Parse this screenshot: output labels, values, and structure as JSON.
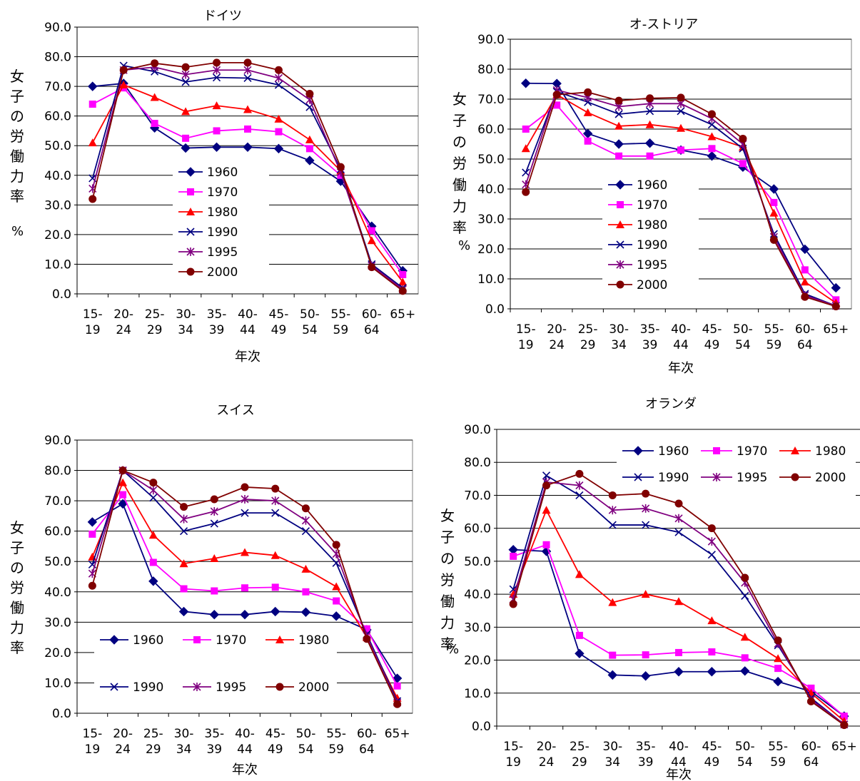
{
  "colors": {
    "1960": "#000080",
    "1970": "#ff00ff",
    "1980": "#ff0000",
    "1990": "#000080",
    "1995": "#800080",
    "2000": "#800000"
  },
  "markers": {
    "1960": "diamond",
    "1970": "square",
    "1980": "triangle",
    "1990": "x",
    "1995": "asterisk",
    "2000": "circle"
  },
  "chart_data": [
    {
      "type": "line",
      "title": "ドイツ",
      "xlabel": "年次",
      "ylabel": "女子の労働力率",
      "ylabel_unit": "%",
      "categories": [
        "15-|19",
        "20-|24",
        "25-|29",
        "30-|34",
        "35-|39",
        "40-|44",
        "45-|49",
        "50-|54",
        "55-|59",
        "60-|64",
        "65+"
      ],
      "ylim": [
        0,
        90
      ],
      "ytick_step": 10,
      "yticks": [
        "0.0",
        "10.0",
        "20.0",
        "30.0",
        "40.0",
        "50.0",
        "60.0",
        "70.0",
        "80.0",
        "90.0"
      ],
      "legend": "center-left, vertical",
      "series": [
        {
          "name": "1960",
          "values": [
            70.0,
            71.0,
            56.0,
            49.2,
            49.5,
            49.5,
            49.0,
            45.0,
            38.0,
            22.8,
            7.8
          ]
        },
        {
          "name": "1970",
          "values": [
            64.0,
            69.5,
            57.5,
            52.5,
            55.0,
            55.6,
            54.7,
            49.0,
            40.0,
            21.3,
            6.5
          ]
        },
        {
          "name": "1980",
          "values": [
            51.0,
            70.5,
            66.3,
            61.5,
            63.5,
            62.2,
            59.0,
            52.0,
            41.5,
            18.0,
            4.0
          ]
        },
        {
          "name": "1990",
          "values": [
            39.0,
            77.0,
            75.0,
            71.5,
            73.0,
            72.8,
            70.5,
            63.0,
            42.0,
            10.0,
            2.0
          ]
        },
        {
          "name": "1995",
          "values": [
            35.5,
            75.5,
            76.5,
            74.0,
            75.5,
            75.5,
            72.8,
            65.5,
            41.0,
            9.5,
            1.5
          ]
        },
        {
          "name": "2000",
          "values": [
            32.0,
            75.5,
            77.8,
            76.5,
            78.0,
            78.0,
            75.5,
            67.5,
            42.8,
            9.0,
            1.0
          ]
        }
      ]
    },
    {
      "type": "line",
      "title": "オ-ストリア",
      "xlabel": "年次",
      "ylabel": "女子の労働力率",
      "ylabel_unit": "%",
      "categories": [
        "15-|19",
        "20-|24",
        "25-|29",
        "30-|34",
        "35-|39",
        "40-|44",
        "45-|49",
        "50-|54",
        "55-|59",
        "60-|64",
        "65+"
      ],
      "ylim": [
        0,
        90
      ],
      "ytick_step": 10,
      "yticks": [
        "0.0",
        "10.0",
        "20.0",
        "30.0",
        "40.0",
        "50.0",
        "60.0",
        "70.0",
        "80.0",
        "90.0"
      ],
      "legend": "center-left, vertical",
      "series": [
        {
          "name": "1960",
          "values": [
            75.3,
            75.2,
            58.5,
            55.0,
            55.3,
            53.0,
            51.0,
            47.3,
            40.0,
            19.9,
            7.0
          ]
        },
        {
          "name": "1970",
          "values": [
            60.0,
            68.0,
            56.0,
            51.0,
            51.0,
            53.0,
            53.5,
            48.5,
            35.5,
            13.0,
            3.0
          ]
        },
        {
          "name": "1980",
          "values": [
            53.5,
            71.5,
            65.5,
            61.0,
            61.5,
            60.3,
            57.5,
            54.0,
            32.0,
            9.0,
            2.0
          ]
        },
        {
          "name": "1990",
          "values": [
            45.5,
            72.5,
            69.0,
            65.0,
            66.0,
            66.0,
            61.5,
            53.5,
            25.0,
            5.0,
            1.0
          ]
        },
        {
          "name": "1995",
          "values": [
            41.5,
            73.0,
            70.5,
            67.5,
            68.5,
            68.5,
            63.5,
            55.0,
            24.0,
            4.5,
            1.0
          ]
        },
        {
          "name": "2000",
          "values": [
            39.0,
            71.5,
            72.3,
            69.5,
            70.3,
            70.5,
            65.0,
            56.8,
            23.0,
            4.0,
            0.8
          ]
        }
      ]
    },
    {
      "type": "line",
      "title": "スイス",
      "xlabel": "年次",
      "ylabel": "女子の労働力率",
      "categories": [
        "15-|19",
        "20-|24",
        "25-|29",
        "30-|34",
        "35-|39",
        "40-|44",
        "45-|49",
        "50-|54",
        "55-|59",
        "60-|64",
        "65+"
      ],
      "ylim": [
        0,
        90
      ],
      "ytick_step": 10,
      "yticks": [
        "0.0",
        "10.0",
        "20.0",
        "30.0",
        "40.0",
        "50.0",
        "60.0",
        "70.0",
        "80.0",
        "90.0"
      ],
      "legend": "bottom-center, 3 columns",
      "series": [
        {
          "name": "1960",
          "values": [
            63.0,
            69.0,
            43.5,
            33.5,
            32.5,
            32.5,
            33.5,
            33.3,
            32.0,
            27.5,
            11.5
          ]
        },
        {
          "name": "1970",
          "values": [
            59.0,
            72.0,
            49.7,
            41.0,
            40.3,
            41.3,
            41.5,
            40.0,
            37.0,
            27.8,
            9.0
          ]
        },
        {
          "name": "1980",
          "values": [
            51.5,
            76.0,
            58.7,
            49.3,
            51.0,
            53.0,
            52.0,
            47.5,
            41.7,
            25.0,
            5.0
          ]
        },
        {
          "name": "1990",
          "values": [
            49.0,
            80.0,
            71.0,
            60.0,
            62.5,
            66.0,
            66.0,
            60.0,
            49.5,
            26.0,
            4.0
          ]
        },
        {
          "name": "1995",
          "values": [
            46.0,
            80.0,
            73.5,
            64.0,
            66.5,
            70.5,
            70.0,
            63.5,
            52.5,
            25.5,
            3.5
          ]
        },
        {
          "name": "2000",
          "values": [
            42.0,
            80.0,
            76.0,
            68.0,
            70.5,
            74.5,
            74.0,
            67.5,
            55.5,
            24.5,
            3.0
          ]
        }
      ]
    },
    {
      "type": "line",
      "title": "オランダ",
      "xlabel": "年次",
      "ylabel": "女子の労働力率",
      "ylabel_unit": "%",
      "categories": [
        "15-|19",
        "20-|24",
        "25-|29",
        "30-|34",
        "35-|39",
        "40-|44",
        "45-|49",
        "50-|54",
        "55-|59",
        "60-|64",
        "65+"
      ],
      "ylim": [
        0,
        90
      ],
      "ytick_step": 10,
      "yticks": [
        "0.0",
        "10.0",
        "20.0",
        "30.0",
        "40.0",
        "50.0",
        "60.0",
        "70.0",
        "80.0",
        "90.0"
      ],
      "legend": "top, 3 columns",
      "series": [
        {
          "name": "1960",
          "values": [
            53.5,
            53.0,
            22.0,
            15.5,
            15.2,
            16.5,
            16.5,
            16.7,
            13.5,
            10.5,
            3.0
          ]
        },
        {
          "name": "1970",
          "values": [
            51.5,
            55.0,
            27.5,
            21.5,
            21.6,
            22.3,
            22.5,
            20.7,
            17.5,
            11.5,
            3.0
          ]
        },
        {
          "name": "1980",
          "values": [
            40.0,
            65.5,
            46.0,
            37.5,
            40.0,
            37.8,
            32.0,
            27.0,
            20.5,
            10.0,
            1.5
          ]
        },
        {
          "name": "1990",
          "values": [
            41.5,
            76.0,
            70.0,
            61.0,
            61.0,
            58.8,
            52.0,
            39.5,
            24.5,
            8.5,
            0.5
          ]
        },
        {
          "name": "1995",
          "values": [
            38.5,
            74.0,
            73.0,
            65.5,
            66.0,
            63.0,
            56.0,
            43.5,
            25.0,
            8.0,
            0.5
          ]
        },
        {
          "name": "2000",
          "values": [
            37.0,
            73.0,
            76.5,
            70.0,
            70.5,
            67.5,
            60.0,
            45.0,
            26.0,
            7.5,
            0.3
          ]
        }
      ]
    }
  ]
}
